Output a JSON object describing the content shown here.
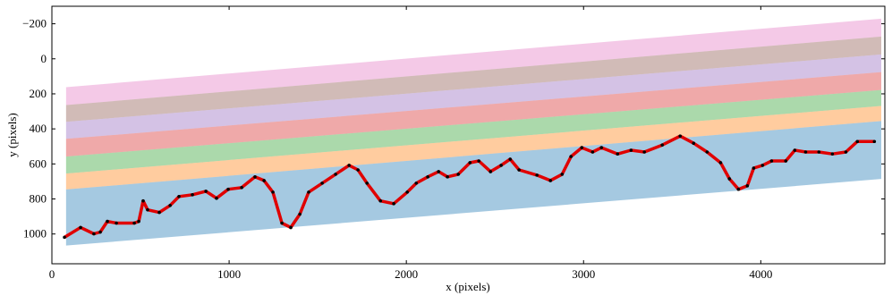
{
  "chart_data": {
    "type": "line",
    "xlabel": "x (pixels)",
    "ylabel": "y (pixels)",
    "xlim": [
      0,
      4700
    ],
    "ylim": [
      1170,
      -300
    ],
    "xticks": [
      0,
      1000,
      2000,
      3000,
      4000
    ],
    "yticks": [
      {
        "value": -200,
        "label": "−200"
      },
      0,
      200,
      400,
      600,
      800,
      1000
    ],
    "y_inverted": true,
    "bands": {
      "x": [
        80,
        4680
      ],
      "items": [
        {
          "color": "#e377c2",
          "top": [
            162,
            -229
          ],
          "bottom": [
            264,
            -127
          ]
        },
        {
          "color": "#8c564b",
          "top": [
            264,
            -127
          ],
          "bottom": [
            360,
            -25
          ]
        },
        {
          "color": "#9467bd",
          "top": [
            360,
            -25
          ],
          "bottom": [
            457,
            76
          ]
        },
        {
          "color": "#d62728",
          "top": [
            457,
            76
          ],
          "bottom": [
            558,
            178
          ]
        },
        {
          "color": "#2ca02c",
          "top": [
            558,
            178
          ],
          "bottom": [
            655,
            269
          ]
        },
        {
          "color": "#ff7f0e",
          "top": [
            655,
            269
          ],
          "bottom": [
            746,
            355
          ]
        },
        {
          "color": "#1f77b4",
          "top": [
            746,
            355
          ],
          "bottom": [
            1066,
            686
          ]
        }
      ]
    },
    "series": [
      {
        "color": "#e00000",
        "marker_color": "#000000",
        "x": [
          71,
          162,
          237,
          273,
          313,
          364,
          465,
          490,
          515,
          540,
          606,
          667,
          717,
          793,
          869,
          929,
          995,
          1071,
          1146,
          1197,
          1247,
          1298,
          1348,
          1399,
          1449,
          1525,
          1601,
          1677,
          1727,
          1778,
          1854,
          1929,
          2005,
          2056,
          2121,
          2182,
          2232,
          2293,
          2359,
          2409,
          2475,
          2535,
          2586,
          2636,
          2737,
          2813,
          2879,
          2929,
          2990,
          3051,
          3101,
          3192,
          3268,
          3343,
          3444,
          3545,
          3621,
          3697,
          3773,
          3823,
          3874,
          3924,
          3960,
          4010,
          4061,
          4141,
          4192,
          4253,
          4328,
          4404,
          4480,
          4545,
          4641
        ],
        "values": [
          1019,
          963,
          999,
          989,
          928,
          938,
          938,
          928,
          811,
          862,
          877,
          837,
          786,
          776,
          756,
          796,
          745,
          735,
          674,
          695,
          761,
          938,
          963,
          887,
          761,
          710,
          659,
          608,
          634,
          710,
          811,
          827,
          761,
          710,
          674,
          644,
          674,
          659,
          593,
          583,
          644,
          608,
          573,
          634,
          664,
          695,
          659,
          558,
          507,
          532,
          507,
          543,
          522,
          532,
          492,
          441,
          482,
          532,
          593,
          685,
          745,
          725,
          624,
          608,
          583,
          583,
          522,
          532,
          532,
          543,
          532,
          472,
          472
        ]
      }
    ]
  }
}
